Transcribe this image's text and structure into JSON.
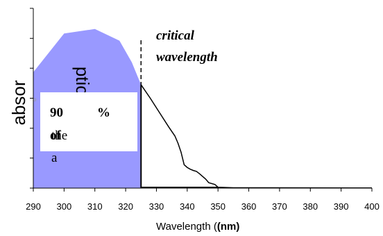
{
  "chart_data": {
    "type": "area",
    "title": "",
    "xlabel": "Wavelength (",
    "xlabel_bold": "(nm)",
    "ylabel": "absor",
    "ylabel_overlap": "ption",
    "xlim": [
      290,
      400
    ],
    "xticks": [
      "290",
      "300",
      "310",
      "320",
      "330",
      "340",
      "350",
      "360",
      "370",
      "380",
      "390",
      "400"
    ],
    "ylim": [
      0,
      1
    ],
    "yticks": [
      0,
      0.167,
      0.333,
      0.5,
      0.667,
      0.833,
      1
    ],
    "series": [
      {
        "values": [
          [
            290,
            0.645
          ],
          [
            300,
            0.86
          ],
          [
            310,
            0.885
          ],
          [
            318,
            0.82
          ],
          [
            322,
            0.7
          ],
          [
            325,
            0.575
          ],
          [
            328,
            0.5
          ],
          [
            331,
            0.42
          ],
          [
            334,
            0.34
          ],
          [
            336,
            0.29
          ],
          [
            337,
            0.25
          ],
          [
            338,
            0.2
          ],
          [
            339,
            0.13
          ],
          [
            340,
            0.115
          ],
          [
            341,
            0.105
          ],
          [
            342,
            0.098
          ],
          [
            343,
            0.093
          ],
          [
            344,
            0.08
          ],
          [
            345,
            0.065
          ],
          [
            346,
            0.05
          ],
          [
            347,
            0.03
          ],
          [
            349,
            0.02
          ],
          [
            350,
            0.005
          ],
          [
            355,
            0.002
          ],
          [
            400,
            0.001
          ]
        ]
      }
    ],
    "shaded_region": {
      "from": 290,
      "to": 325,
      "color": "#9999ff"
    },
    "critical_wavelength": 325,
    "annotations": {
      "critical_line1": "critical",
      "critical_line2": "wavelength",
      "box_value": "90",
      "box_percent": "%",
      "box_of": "of",
      "box_the": "the",
      "box_a": "a",
      "box_tiny": "o"
    }
  }
}
